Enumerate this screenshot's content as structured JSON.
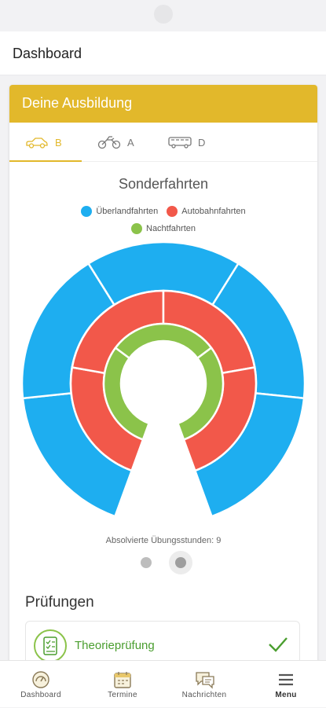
{
  "header": {
    "title": "Dashboard"
  },
  "card": {
    "title": "Deine Ausbildung"
  },
  "tabs": [
    {
      "label": "B",
      "icon": "car-icon",
      "active": true
    },
    {
      "label": "A",
      "icon": "motorcycle-icon",
      "active": false
    },
    {
      "label": "D",
      "icon": "bus-icon",
      "active": false
    }
  ],
  "colors": {
    "accent": "#e2b82b",
    "ueberland": "#1eaef0",
    "autobahn": "#f2584a",
    "nacht": "#8bc34a"
  },
  "chart_data": {
    "type": "pie",
    "title": "Sonderfahrten",
    "legend": [
      "Überlandfahrten",
      "Autobahnfahrten",
      "Nachtfahrten"
    ],
    "legend_placement": "top",
    "rings": [
      {
        "name": "Überlandfahrten",
        "segments": 5,
        "completed": 5
      },
      {
        "name": "Autobahnfahrten",
        "segments": 4,
        "completed": 4
      },
      {
        "name": "Nachtfahrten",
        "segments": 3,
        "completed": 3
      }
    ],
    "caption": "Absolvierte Übungsstunden: 9"
  },
  "pager": {
    "count": 2,
    "active": 1
  },
  "pruefungen": {
    "title": "Prüfungen",
    "items": [
      {
        "label": "Theorieprüfung",
        "icon": "checklist-icon",
        "status": "done"
      }
    ]
  },
  "nav": [
    {
      "label": "Dashboard",
      "icon": "dashboard-icon"
    },
    {
      "label": "Termine",
      "icon": "calendar-icon"
    },
    {
      "label": "Nachrichten",
      "icon": "chat-icon"
    },
    {
      "label": "Menu",
      "icon": "menu-icon"
    }
  ]
}
